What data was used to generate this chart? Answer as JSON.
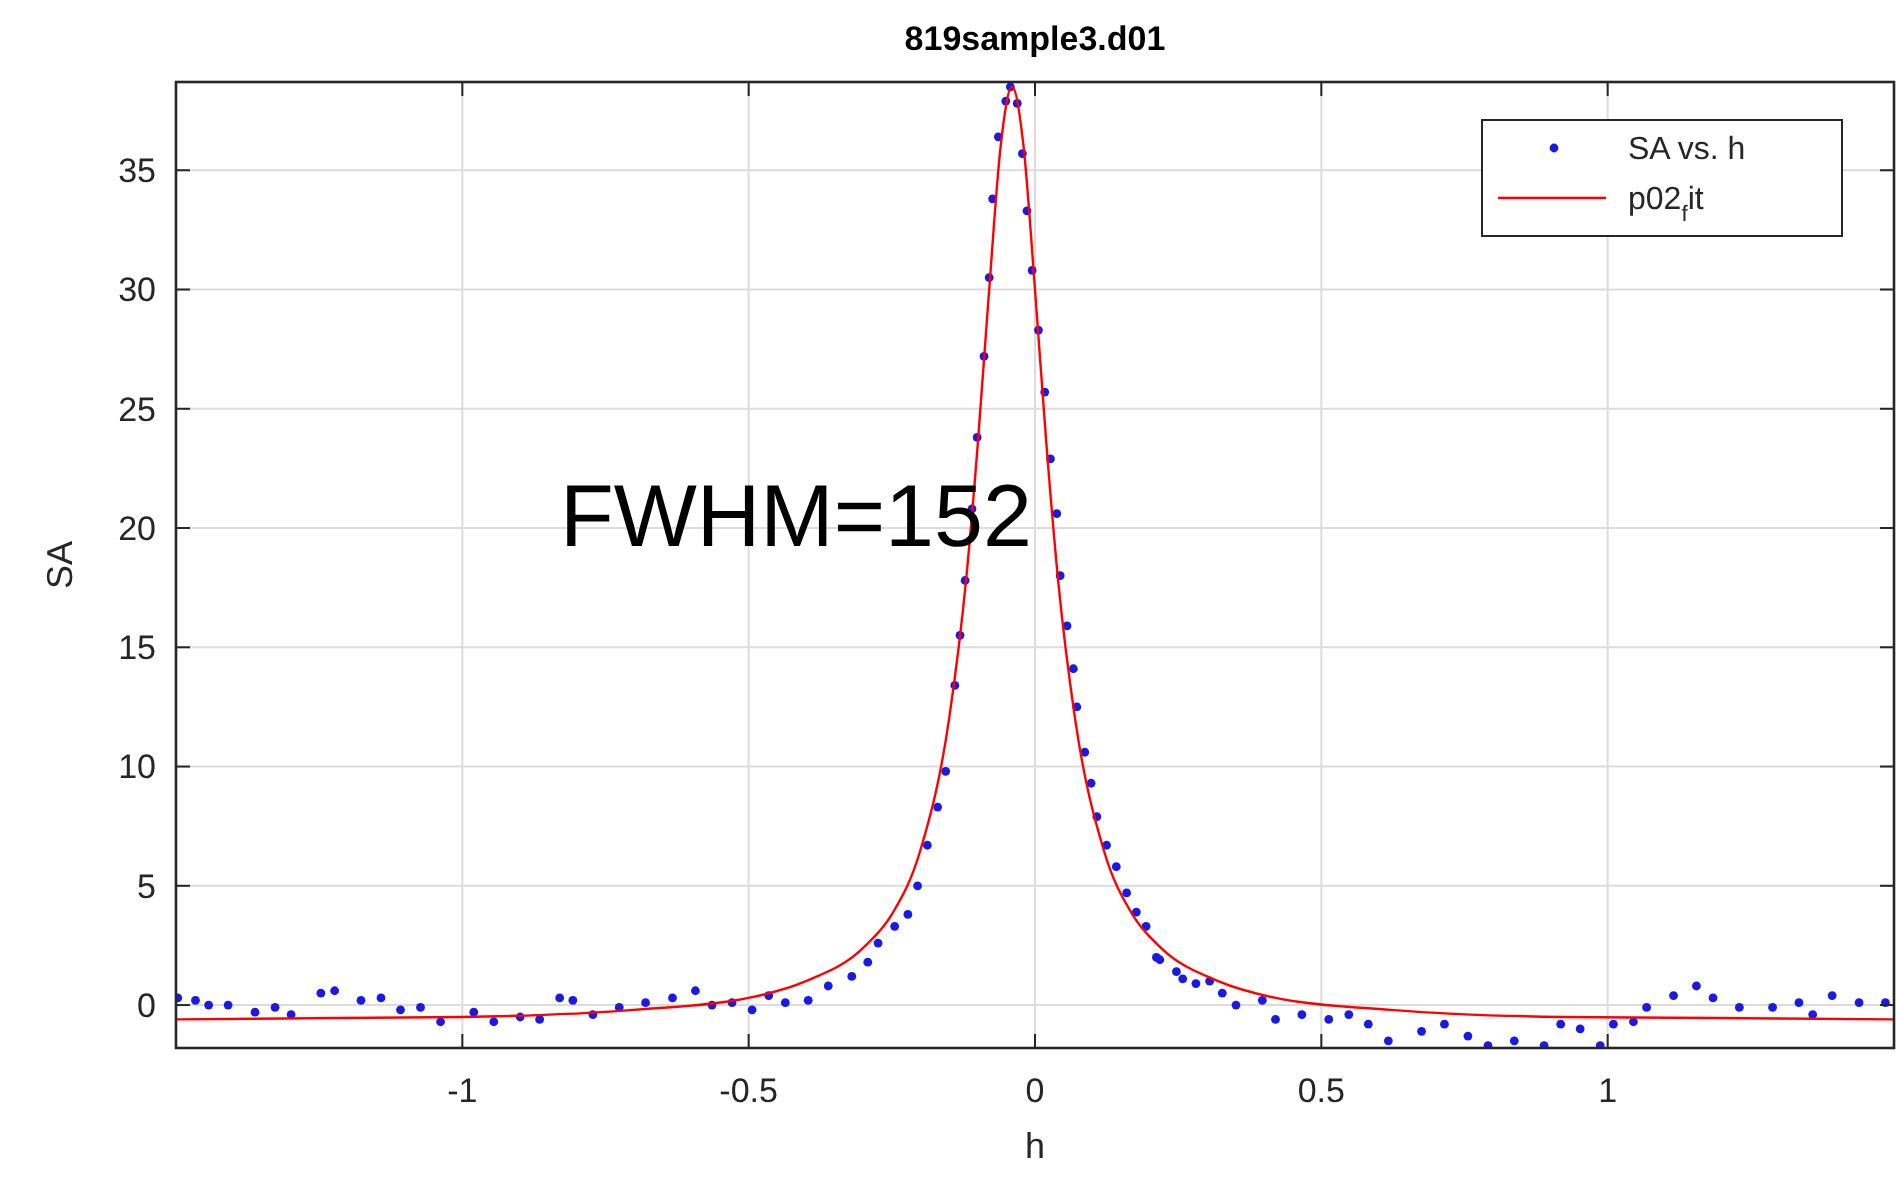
{
  "chart_data": {
    "type": "scatter",
    "title": "819sample3.d01",
    "xlabel": "h",
    "ylabel": "SA",
    "xlim": [
      -1.5,
      1.5
    ],
    "ylim": [
      -1.8,
      38.7
    ],
    "xticks": [
      -1,
      -0.5,
      0,
      0.5,
      1
    ],
    "yticks": [
      0,
      5,
      10,
      15,
      20,
      25,
      30,
      35
    ],
    "grid": true,
    "legend": "top right",
    "annotations": [
      "FWHM=152"
    ],
    "series": [
      {
        "name": "SA vs. h",
        "marker": "circle",
        "color": "#1a1ae6",
        "x": [
          -1.497,
          -1.466,
          -1.443,
          -1.409,
          -1.362,
          -1.327,
          -1.299,
          -1.247,
          -1.223,
          -1.177,
          -1.142,
          -1.108,
          -1.073,
          -1.038,
          -0.98,
          -0.945,
          -0.899,
          -0.865,
          -0.83,
          -0.807,
          -0.772,
          -0.726,
          -0.68,
          -0.633,
          -0.593,
          -0.564,
          -0.529,
          -0.494,
          -0.465,
          -0.436,
          -0.396,
          -0.361,
          -0.32,
          -0.292,
          -0.274,
          -0.245,
          -0.222,
          -0.205,
          -0.188,
          -0.17,
          -0.156,
          -0.14,
          -0.131,
          -0.122,
          -0.11,
          -0.101,
          -0.089,
          -0.08,
          -0.074,
          -0.064,
          -0.051,
          -0.043,
          -0.031,
          -0.022,
          -0.014,
          -0.005,
          0.006,
          0.017,
          0.027,
          0.038,
          0.044,
          0.056,
          0.067,
          0.073,
          0.087,
          0.098,
          0.108,
          0.125,
          0.142,
          0.16,
          0.177,
          0.194,
          0.212,
          0.218,
          0.247,
          0.258,
          0.281,
          0.305,
          0.327,
          0.351,
          0.397,
          0.42,
          0.466,
          0.513,
          0.548,
          0.582,
          0.617,
          0.675,
          0.715,
          0.756,
          0.791,
          0.837,
          0.889,
          0.918,
          0.952,
          0.987,
          1.01,
          1.045,
          1.068,
          1.115,
          1.155,
          1.184,
          1.23,
          1.288,
          1.334,
          1.358,
          1.392,
          1.439,
          1.485
        ],
        "values": [
          0.3,
          0.2,
          0,
          0,
          -0.3,
          -0.1,
          -0.4,
          0.5,
          0.6,
          0.2,
          0.3,
          -0.2,
          -0.1,
          -0.7,
          -0.3,
          -0.7,
          -0.5,
          -0.6,
          0.3,
          0.2,
          -0.4,
          -0.1,
          0.1,
          0.3,
          0.6,
          0,
          0.1,
          -0.2,
          0.4,
          0.1,
          0.2,
          0.8,
          1.2,
          1.8,
          2.6,
          3.3,
          3.8,
          5,
          6.7,
          8.3,
          9.8,
          13.4,
          15.5,
          17.8,
          20.8,
          23.8,
          27.2,
          30.5,
          33.8,
          36.4,
          37.9,
          38.5,
          37.8,
          35.7,
          33.3,
          30.8,
          28.3,
          25.7,
          22.9,
          20.6,
          18,
          15.9,
          14.1,
          12.5,
          10.6,
          9.3,
          7.9,
          6.7,
          5.8,
          4.7,
          3.9,
          3.3,
          2,
          1.9,
          1.4,
          1.1,
          0.9,
          1,
          0.5,
          0,
          0.2,
          -0.6,
          -0.4,
          -0.6,
          -0.4,
          -0.8,
          -1.5,
          -1.1,
          -0.8,
          -1.3,
          -1.7,
          -1.5,
          -1.7,
          -0.8,
          -1,
          -1.7,
          -0.8,
          -0.7,
          -0.1,
          0.4,
          0.8,
          0.3,
          -0.1,
          -0.1,
          0.1,
          -0.4,
          0.4,
          0.1,
          0.1
        ]
      },
      {
        "name": "p02$_{f}$it",
        "type": "line",
        "line_style": "solid",
        "color": "#ff0000",
        "x": [
          -1.5,
          -1,
          -0.7,
          -0.5,
          -0.4,
          -0.3,
          -0.25,
          -0.2,
          -0.15,
          -0.12,
          -0.1,
          -0.08,
          -0.06,
          -0.04,
          -0.02,
          0,
          0.02,
          0.04,
          0.07,
          0.12,
          0.17,
          0.22,
          0.32,
          0.42,
          0.62,
          0.92,
          1.5
        ],
        "values": [
          -0.6,
          -0.5,
          -0.2,
          0.3,
          1,
          2.4,
          3.8,
          6.5,
          12,
          17.9,
          23.5,
          30,
          36,
          38.5,
          36,
          30,
          23.5,
          17.9,
          12,
          6.5,
          3.8,
          2.4,
          1,
          0.3,
          -0.2,
          -0.5,
          -0.6
        ]
      }
    ]
  }
}
